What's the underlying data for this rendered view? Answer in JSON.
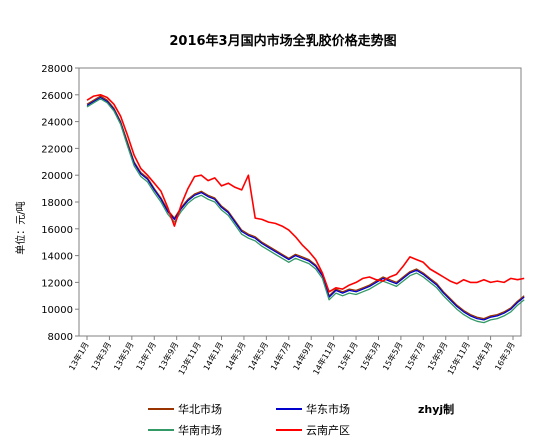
{
  "chart_data": {
    "type": "line",
    "title": "2016年3月国内市场全乳胶价格走势图",
    "ylabel": "单位：元/吨",
    "ylim": [
      8000,
      28000
    ],
    "yticks": [
      8000,
      10000,
      12000,
      14000,
      16000,
      18000,
      20000,
      22000,
      24000,
      26000,
      28000
    ],
    "x_tick_labels": [
      "13年1月",
      "13年3月",
      "13年5月",
      "13年7月",
      "13年9月",
      "13年11月",
      "14年1月",
      "14年3月",
      "14年5月",
      "14年7月",
      "14年9月",
      "14年11月",
      "15年1月",
      "15年3月",
      "15年5月",
      "15年7月",
      "15年9月",
      "15年11月",
      "16年1月",
      "16年3月"
    ],
    "credit": "zhyj制",
    "grid": false,
    "legend_position": "bottom",
    "colors": {
      "north": "#993300",
      "east": "#0000cc",
      "south": "#339966",
      "yunnan": "#ff0000"
    },
    "series": [
      {
        "name": "华北市场",
        "color": "#993300",
        "points": [
          [
            0.0,
            25300
          ],
          [
            0.3,
            25600
          ],
          [
            0.6,
            25900
          ],
          [
            0.9,
            25600
          ],
          [
            1.2,
            25000
          ],
          [
            1.5,
            24000
          ],
          [
            1.8,
            22500
          ],
          [
            2.1,
            21000
          ],
          [
            2.4,
            20200
          ],
          [
            2.7,
            19800
          ],
          [
            3.0,
            19000
          ],
          [
            3.3,
            18300
          ],
          [
            3.6,
            17400
          ],
          [
            3.9,
            16800
          ],
          [
            4.2,
            17600
          ],
          [
            4.5,
            18200
          ],
          [
            4.8,
            18600
          ],
          [
            5.1,
            18800
          ],
          [
            5.4,
            18500
          ],
          [
            5.7,
            18300
          ],
          [
            6.0,
            17700
          ],
          [
            6.3,
            17300
          ],
          [
            6.6,
            16600
          ],
          [
            6.9,
            15900
          ],
          [
            7.2,
            15600
          ],
          [
            7.5,
            15400
          ],
          [
            7.8,
            15000
          ],
          [
            8.1,
            14700
          ],
          [
            8.4,
            14400
          ],
          [
            8.7,
            14100
          ],
          [
            9.0,
            13800
          ],
          [
            9.3,
            14100
          ],
          [
            9.6,
            13900
          ],
          [
            9.9,
            13700
          ],
          [
            10.2,
            13300
          ],
          [
            10.5,
            12600
          ],
          [
            10.8,
            11000
          ],
          [
            11.1,
            11500
          ],
          [
            11.4,
            11300
          ],
          [
            11.7,
            11500
          ],
          [
            12.0,
            11400
          ],
          [
            12.3,
            11600
          ],
          [
            12.6,
            11800
          ],
          [
            12.9,
            12100
          ],
          [
            13.2,
            12400
          ],
          [
            13.5,
            12200
          ],
          [
            13.8,
            12000
          ],
          [
            14.1,
            12400
          ],
          [
            14.4,
            12800
          ],
          [
            14.7,
            13000
          ],
          [
            15.0,
            12700
          ],
          [
            15.3,
            12300
          ],
          [
            15.6,
            11900
          ],
          [
            15.9,
            11300
          ],
          [
            16.2,
            10800
          ],
          [
            16.5,
            10300
          ],
          [
            16.8,
            9900
          ],
          [
            17.1,
            9600
          ],
          [
            17.4,
            9400
          ],
          [
            17.7,
            9300
          ],
          [
            18.0,
            9500
          ],
          [
            18.3,
            9600
          ],
          [
            18.6,
            9800
          ],
          [
            18.9,
            10100
          ],
          [
            19.2,
            10600
          ],
          [
            19.5,
            11000
          ]
        ]
      },
      {
        "name": "华东市场",
        "color": "#0000cc",
        "points": [
          [
            0.0,
            25200
          ],
          [
            0.3,
            25500
          ],
          [
            0.6,
            25800
          ],
          [
            0.9,
            25500
          ],
          [
            1.2,
            24900
          ],
          [
            1.5,
            23900
          ],
          [
            1.8,
            22300
          ],
          [
            2.1,
            20900
          ],
          [
            2.4,
            20100
          ],
          [
            2.7,
            19700
          ],
          [
            3.0,
            18900
          ],
          [
            3.3,
            18200
          ],
          [
            3.6,
            17300
          ],
          [
            3.9,
            16700
          ],
          [
            4.2,
            17500
          ],
          [
            4.5,
            18100
          ],
          [
            4.8,
            18500
          ],
          [
            5.1,
            18700
          ],
          [
            5.4,
            18400
          ],
          [
            5.7,
            18200
          ],
          [
            6.0,
            17600
          ],
          [
            6.3,
            17200
          ],
          [
            6.6,
            16500
          ],
          [
            6.9,
            15800
          ],
          [
            7.2,
            15500
          ],
          [
            7.5,
            15300
          ],
          [
            7.8,
            14900
          ],
          [
            8.1,
            14600
          ],
          [
            8.4,
            14300
          ],
          [
            8.7,
            14000
          ],
          [
            9.0,
            13700
          ],
          [
            9.3,
            14000
          ],
          [
            9.6,
            13800
          ],
          [
            9.9,
            13600
          ],
          [
            10.2,
            13200
          ],
          [
            10.5,
            12500
          ],
          [
            10.8,
            10900
          ],
          [
            11.1,
            11400
          ],
          [
            11.4,
            11200
          ],
          [
            11.7,
            11400
          ],
          [
            12.0,
            11300
          ],
          [
            12.3,
            11500
          ],
          [
            12.6,
            11700
          ],
          [
            12.9,
            12000
          ],
          [
            13.2,
            12300
          ],
          [
            13.5,
            12100
          ],
          [
            13.8,
            11900
          ],
          [
            14.1,
            12300
          ],
          [
            14.4,
            12700
          ],
          [
            14.7,
            12900
          ],
          [
            15.0,
            12600
          ],
          [
            15.3,
            12200
          ],
          [
            15.6,
            11800
          ],
          [
            15.9,
            11200
          ],
          [
            16.2,
            10700
          ],
          [
            16.5,
            10200
          ],
          [
            16.8,
            9800
          ],
          [
            17.1,
            9500
          ],
          [
            17.4,
            9300
          ],
          [
            17.7,
            9200
          ],
          [
            18.0,
            9400
          ],
          [
            18.3,
            9500
          ],
          [
            18.6,
            9700
          ],
          [
            18.9,
            10000
          ],
          [
            19.2,
            10500
          ],
          [
            19.5,
            10900
          ]
        ]
      },
      {
        "name": "华南市场",
        "color": "#339966",
        "points": [
          [
            0.0,
            25100
          ],
          [
            0.3,
            25400
          ],
          [
            0.6,
            25700
          ],
          [
            0.9,
            25400
          ],
          [
            1.2,
            24800
          ],
          [
            1.5,
            23800
          ],
          [
            1.8,
            22200
          ],
          [
            2.1,
            20700
          ],
          [
            2.4,
            19900
          ],
          [
            2.7,
            19500
          ],
          [
            3.0,
            18700
          ],
          [
            3.3,
            18000
          ],
          [
            3.6,
            17100
          ],
          [
            3.9,
            16500
          ],
          [
            4.2,
            17300
          ],
          [
            4.5,
            17900
          ],
          [
            4.8,
            18300
          ],
          [
            5.1,
            18500
          ],
          [
            5.4,
            18200
          ],
          [
            5.7,
            18000
          ],
          [
            6.0,
            17400
          ],
          [
            6.3,
            17000
          ],
          [
            6.6,
            16300
          ],
          [
            6.9,
            15600
          ],
          [
            7.2,
            15300
          ],
          [
            7.5,
            15100
          ],
          [
            7.8,
            14700
          ],
          [
            8.1,
            14400
          ],
          [
            8.4,
            14100
          ],
          [
            8.7,
            13800
          ],
          [
            9.0,
            13500
          ],
          [
            9.3,
            13800
          ],
          [
            9.6,
            13600
          ],
          [
            9.9,
            13400
          ],
          [
            10.2,
            13000
          ],
          [
            10.5,
            12300
          ],
          [
            10.8,
            10700
          ],
          [
            11.1,
            11200
          ],
          [
            11.4,
            11000
          ],
          [
            11.7,
            11200
          ],
          [
            12.0,
            11100
          ],
          [
            12.3,
            11300
          ],
          [
            12.6,
            11500
          ],
          [
            12.9,
            11800
          ],
          [
            13.2,
            12100
          ],
          [
            13.5,
            11900
          ],
          [
            13.8,
            11700
          ],
          [
            14.1,
            12100
          ],
          [
            14.4,
            12500
          ],
          [
            14.7,
            12700
          ],
          [
            15.0,
            12400
          ],
          [
            15.3,
            12000
          ],
          [
            15.6,
            11600
          ],
          [
            15.9,
            11000
          ],
          [
            16.2,
            10500
          ],
          [
            16.5,
            10000
          ],
          [
            16.8,
            9600
          ],
          [
            17.1,
            9300
          ],
          [
            17.4,
            9100
          ],
          [
            17.7,
            9000
          ],
          [
            18.0,
            9200
          ],
          [
            18.3,
            9300
          ],
          [
            18.6,
            9500
          ],
          [
            18.9,
            9800
          ],
          [
            19.2,
            10300
          ],
          [
            19.5,
            10700
          ]
        ]
      },
      {
        "name": "云南产区",
        "color": "#ff0000",
        "points": [
          [
            0.0,
            25600
          ],
          [
            0.3,
            25900
          ],
          [
            0.6,
            26000
          ],
          [
            0.9,
            25800
          ],
          [
            1.2,
            25300
          ],
          [
            1.5,
            24400
          ],
          [
            1.8,
            23000
          ],
          [
            2.1,
            21500
          ],
          [
            2.4,
            20500
          ],
          [
            2.7,
            20000
          ],
          [
            3.0,
            19400
          ],
          [
            3.3,
            18800
          ],
          [
            3.6,
            17600
          ],
          [
            3.9,
            16200
          ],
          [
            4.2,
            17800
          ],
          [
            4.5,
            19000
          ],
          [
            4.8,
            19900
          ],
          [
            5.1,
            20000
          ],
          [
            5.4,
            19600
          ],
          [
            5.7,
            19800
          ],
          [
            6.0,
            19200
          ],
          [
            6.3,
            19400
          ],
          [
            6.6,
            19100
          ],
          [
            6.9,
            18900
          ],
          [
            7.2,
            20000
          ],
          [
            7.5,
            16800
          ],
          [
            7.8,
            16700
          ],
          [
            8.1,
            16500
          ],
          [
            8.4,
            16400
          ],
          [
            8.7,
            16200
          ],
          [
            9.0,
            15900
          ],
          [
            9.3,
            15400
          ],
          [
            9.6,
            14800
          ],
          [
            9.9,
            14300
          ],
          [
            10.2,
            13700
          ],
          [
            10.5,
            12700
          ],
          [
            10.8,
            11300
          ],
          [
            11.1,
            11600
          ],
          [
            11.4,
            11500
          ],
          [
            11.7,
            11800
          ],
          [
            12.0,
            12000
          ],
          [
            12.3,
            12300
          ],
          [
            12.6,
            12400
          ],
          [
            12.9,
            12200
          ],
          [
            13.2,
            12100
          ],
          [
            13.5,
            12400
          ],
          [
            13.8,
            12600
          ],
          [
            14.1,
            13200
          ],
          [
            14.4,
            13900
          ],
          [
            14.7,
            13700
          ],
          [
            15.0,
            13500
          ],
          [
            15.3,
            13000
          ],
          [
            15.6,
            12700
          ],
          [
            15.9,
            12400
          ],
          [
            16.2,
            12100
          ],
          [
            16.5,
            11900
          ],
          [
            16.8,
            12200
          ],
          [
            17.1,
            12000
          ],
          [
            17.4,
            12000
          ],
          [
            17.7,
            12200
          ],
          [
            18.0,
            12000
          ],
          [
            18.3,
            12100
          ],
          [
            18.6,
            12000
          ],
          [
            18.9,
            12300
          ],
          [
            19.2,
            12200
          ],
          [
            19.5,
            12300
          ]
        ]
      }
    ]
  }
}
